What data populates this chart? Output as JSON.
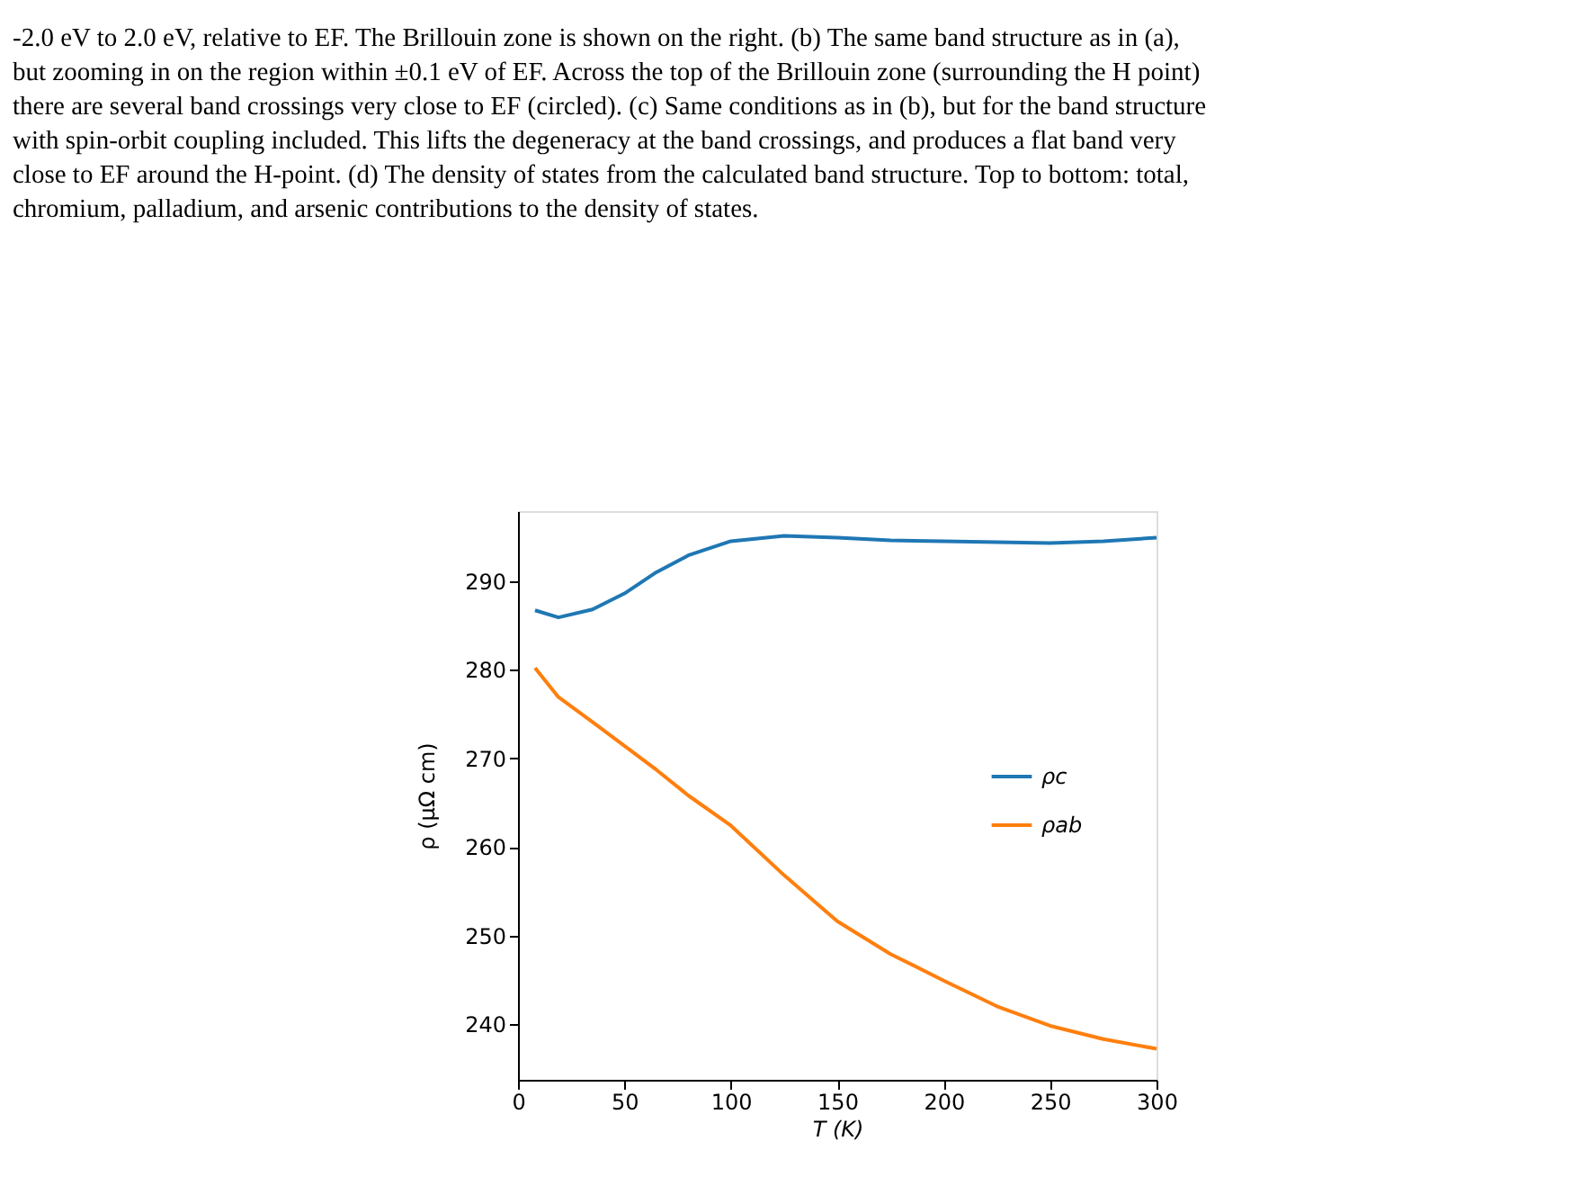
{
  "chart_data": {
    "type": "line",
    "xlabel": "T  (K)",
    "ylabel": "ρ  (μΩ cm)",
    "x": [
      8,
      19,
      35,
      50,
      65,
      80,
      100,
      125,
      150,
      175,
      200,
      225,
      250,
      275,
      300
    ],
    "series": [
      {
        "name": "ρc",
        "color": "#1f77b4",
        "values": [
          286.7,
          285.9,
          286.8,
          288.6,
          291.0,
          292.9,
          294.5,
          295.1,
          294.9,
          294.6,
          294.5,
          294.4,
          294.3,
          294.5,
          294.9
        ]
      },
      {
        "name": "ρab",
        "color": "#ff7f0e",
        "values": [
          280.2,
          276.9,
          274.1,
          271.4,
          268.7,
          265.8,
          262.4,
          256.8,
          251.6,
          247.9,
          244.9,
          242.0,
          239.8,
          238.3,
          237.2
        ]
      }
    ],
    "xlim": [
      0,
      300
    ],
    "ylim": [
      233.7,
      297.9
    ],
    "xticks": [
      0,
      50,
      100,
      150,
      200,
      250,
      300
    ],
    "yticks": [
      240,
      250,
      260,
      270,
      280,
      290
    ],
    "grid": false,
    "legend": "right",
    "line_style": "solid",
    "marker": "none",
    "annotations": [
      "-2.0 eV to 2.0 eV, relative to EF. The Brillouin zone is shown on the right. (b) The same band structure as in (a),",
      "but zooming in on the region within ±0.1 eV of EF. Across the top of the Brillouin zone (surrounding the H point)",
      "there are several band crossings very close to EF (circled). (c) Same conditions as in (b), but for the band structure",
      "with spin-orbit coupling included. This lifts the degeneracy at the band crossings, and produces a flat band very",
      "close to EF around the H-point. (d) The density of states from the calculated band structure. Top to bottom: total,",
      "chromium, palladium, and arsenic contributions to the density of states."
    ]
  }
}
